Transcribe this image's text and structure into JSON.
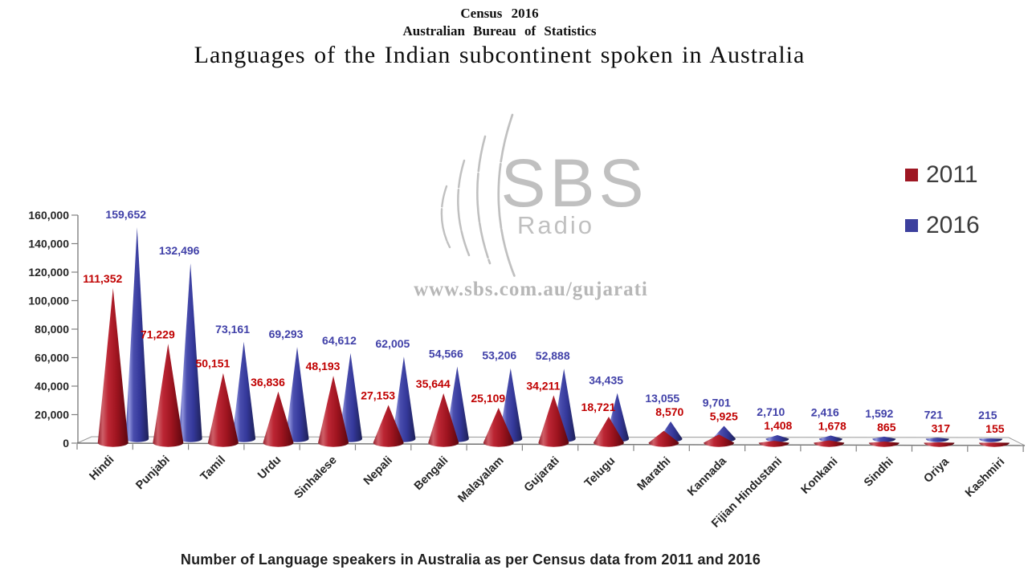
{
  "header": {
    "line1": "Census 2016",
    "line2": "Australian Bureau of Statistics",
    "title": "Languages of the Indian subcontinent spoken in Australia"
  },
  "watermark": {
    "brand": "SBS",
    "sub": "Radio",
    "url": "www.sbs.com.au/gujarati"
  },
  "legend": {
    "items": [
      {
        "label": "2011",
        "color": "#9E1622"
      },
      {
        "label": "2016",
        "color": "#3C3F9D"
      }
    ]
  },
  "caption": "Number of Language speakers in Australia as per Census data from 2011 and 2016",
  "y_axis": {
    "min": 0,
    "max": 160000,
    "step": 20000,
    "tick_labels": [
      "0",
      "20,000",
      "40,000",
      "60,000",
      "80,000",
      "100,000",
      "120,000",
      "140,000",
      "160,000"
    ]
  },
  "chart_data": {
    "type": "bar",
    "subtype": "3d-cone",
    "title": "Languages of the Indian subcontinent spoken in Australia",
    "xlabel": "",
    "ylabel": "",
    "ylim": [
      0,
      160000
    ],
    "grid": false,
    "legend_position": "top-right",
    "categories": [
      "Hindi",
      "Punjabi",
      "Tamil",
      "Urdu",
      "Sinhalese",
      "Nepali",
      "Bengali",
      "Malayalam",
      "Gujarati",
      "Telugu",
      "Marathi",
      "Kannada",
      "Fijian Hindustani",
      "Konkani",
      "Sindhi",
      "Oriya",
      "Kashmiri"
    ],
    "series": [
      {
        "name": "2011",
        "color": "#A01622",
        "label_color": "#C00000",
        "values": [
          111352,
          71229,
          50151,
          36836,
          48193,
          27153,
          35644,
          25109,
          34211,
          18721,
          8570,
          5925,
          1408,
          1678,
          865,
          317,
          155
        ]
      },
      {
        "name": "2016",
        "color": "#3C3F9D",
        "label_color": "#4040A8",
        "values": [
          159652,
          132496,
          73161,
          69293,
          64612,
          62005,
          54566,
          53206,
          52888,
          34435,
          13055,
          9701,
          2710,
          2416,
          1592,
          721,
          215
        ]
      }
    ]
  }
}
